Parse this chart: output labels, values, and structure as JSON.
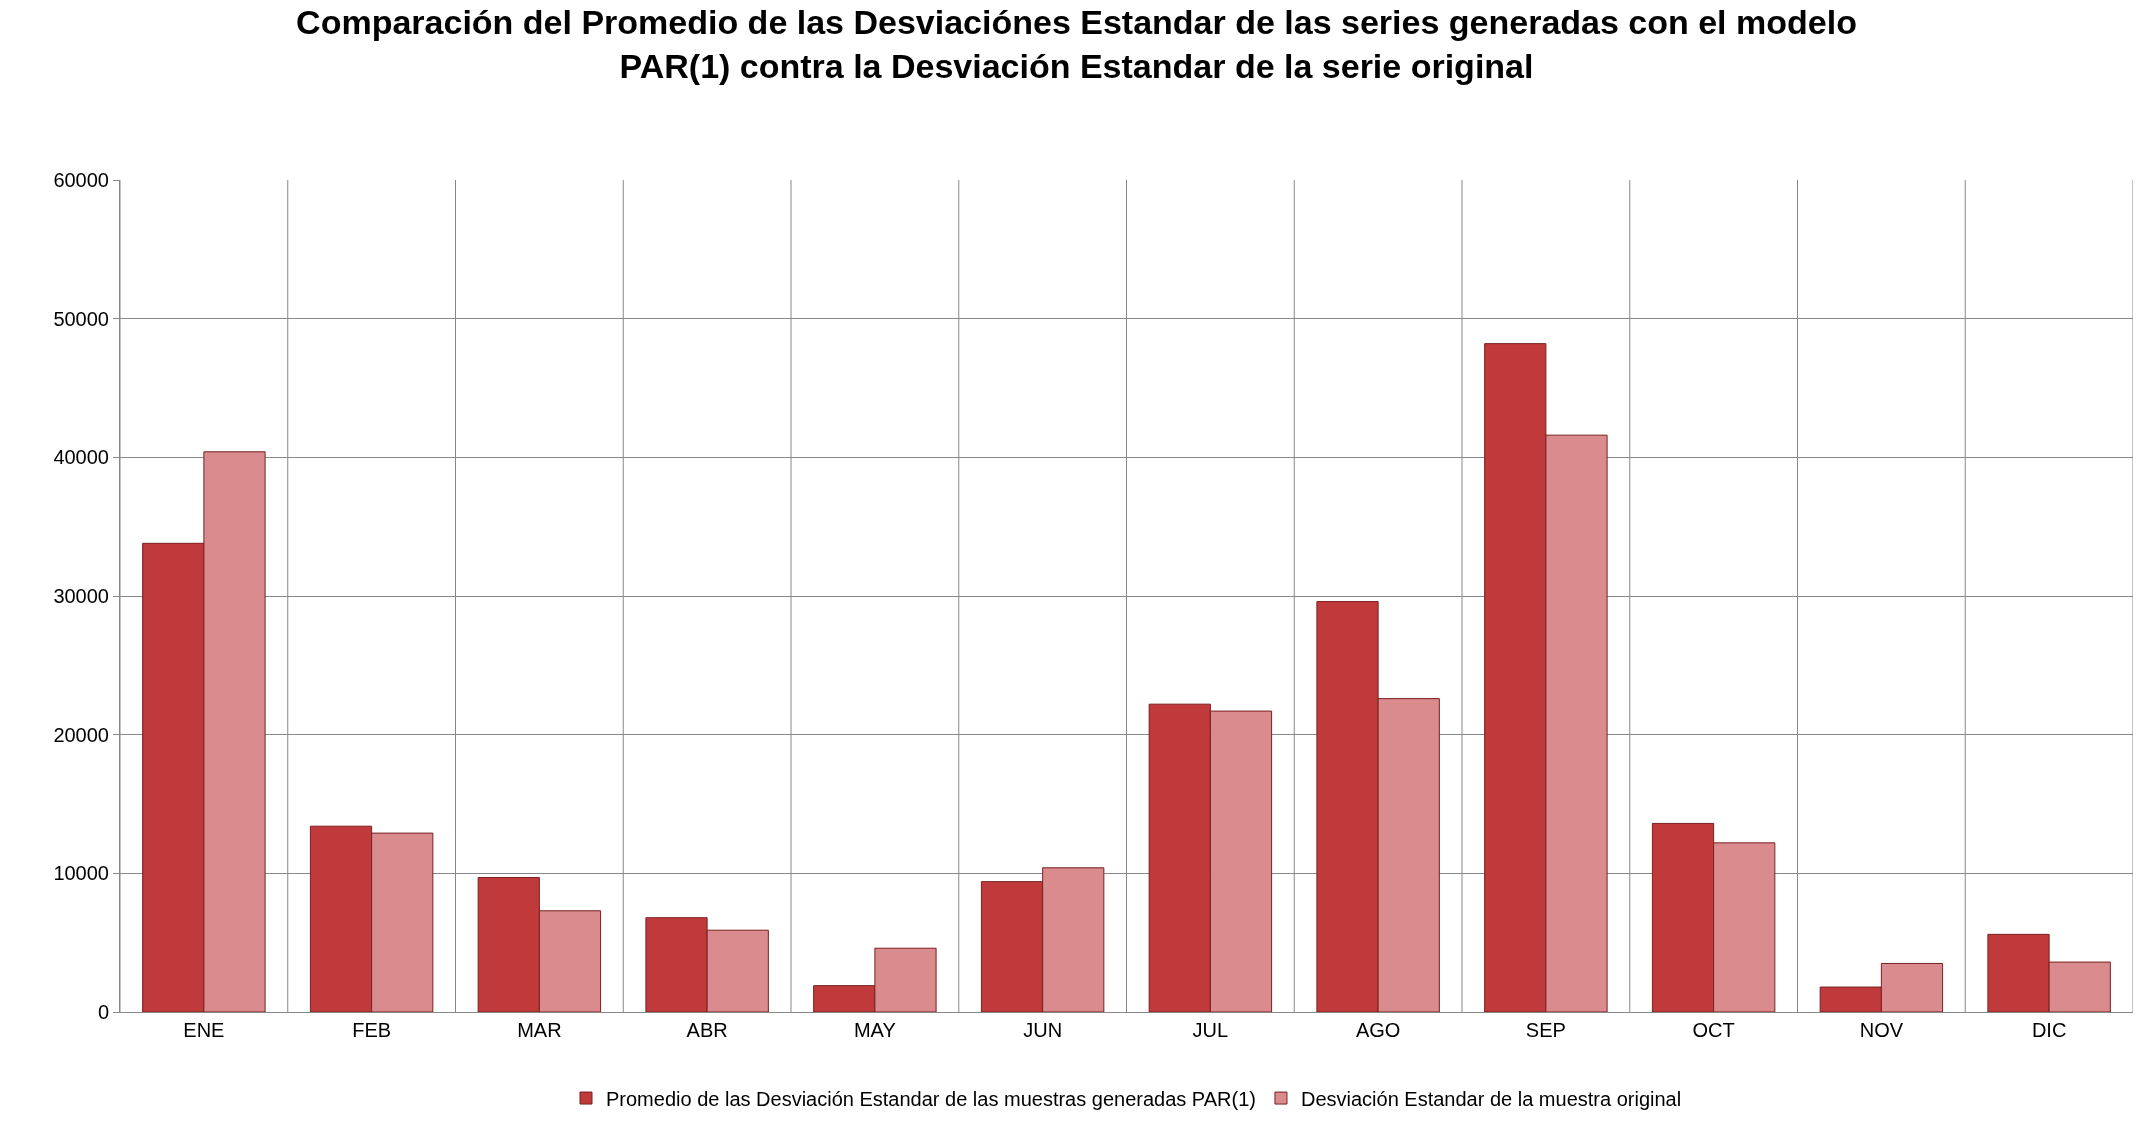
{
  "chart_data": {
    "type": "bar",
    "title": "Comparación del Promedio de las Desviaciónes Estandar de las series generadas con el modelo PAR(1) contra la Desviación Estandar de la serie original",
    "categories": [
      "ENE",
      "FEB",
      "MAR",
      "ABR",
      "MAY",
      "JUN",
      "JUL",
      "AGO",
      "SEP",
      "OCT",
      "NOV",
      "DIC"
    ],
    "series": [
      {
        "name": "Promedio de las Desviación Estandar de las muestras generadas PAR(1)",
        "color": "#c0393b",
        "values": [
          33800,
          13400,
          9700,
          6800,
          1900,
          9400,
          22200,
          29600,
          48200,
          13600,
          1800,
          5600
        ]
      },
      {
        "name": "Desviación Estandar de la muestra original",
        "color": "#d98b8d",
        "values": [
          40400,
          12900,
          7300,
          5900,
          4600,
          10400,
          21700,
          22600,
          41600,
          12200,
          3500,
          3600
        ]
      }
    ],
    "ylim": [
      0,
      60000
    ],
    "yticks": [
      0,
      10000,
      20000,
      30000,
      40000,
      50000,
      60000
    ],
    "grid": true,
    "legend": "bottom"
  }
}
